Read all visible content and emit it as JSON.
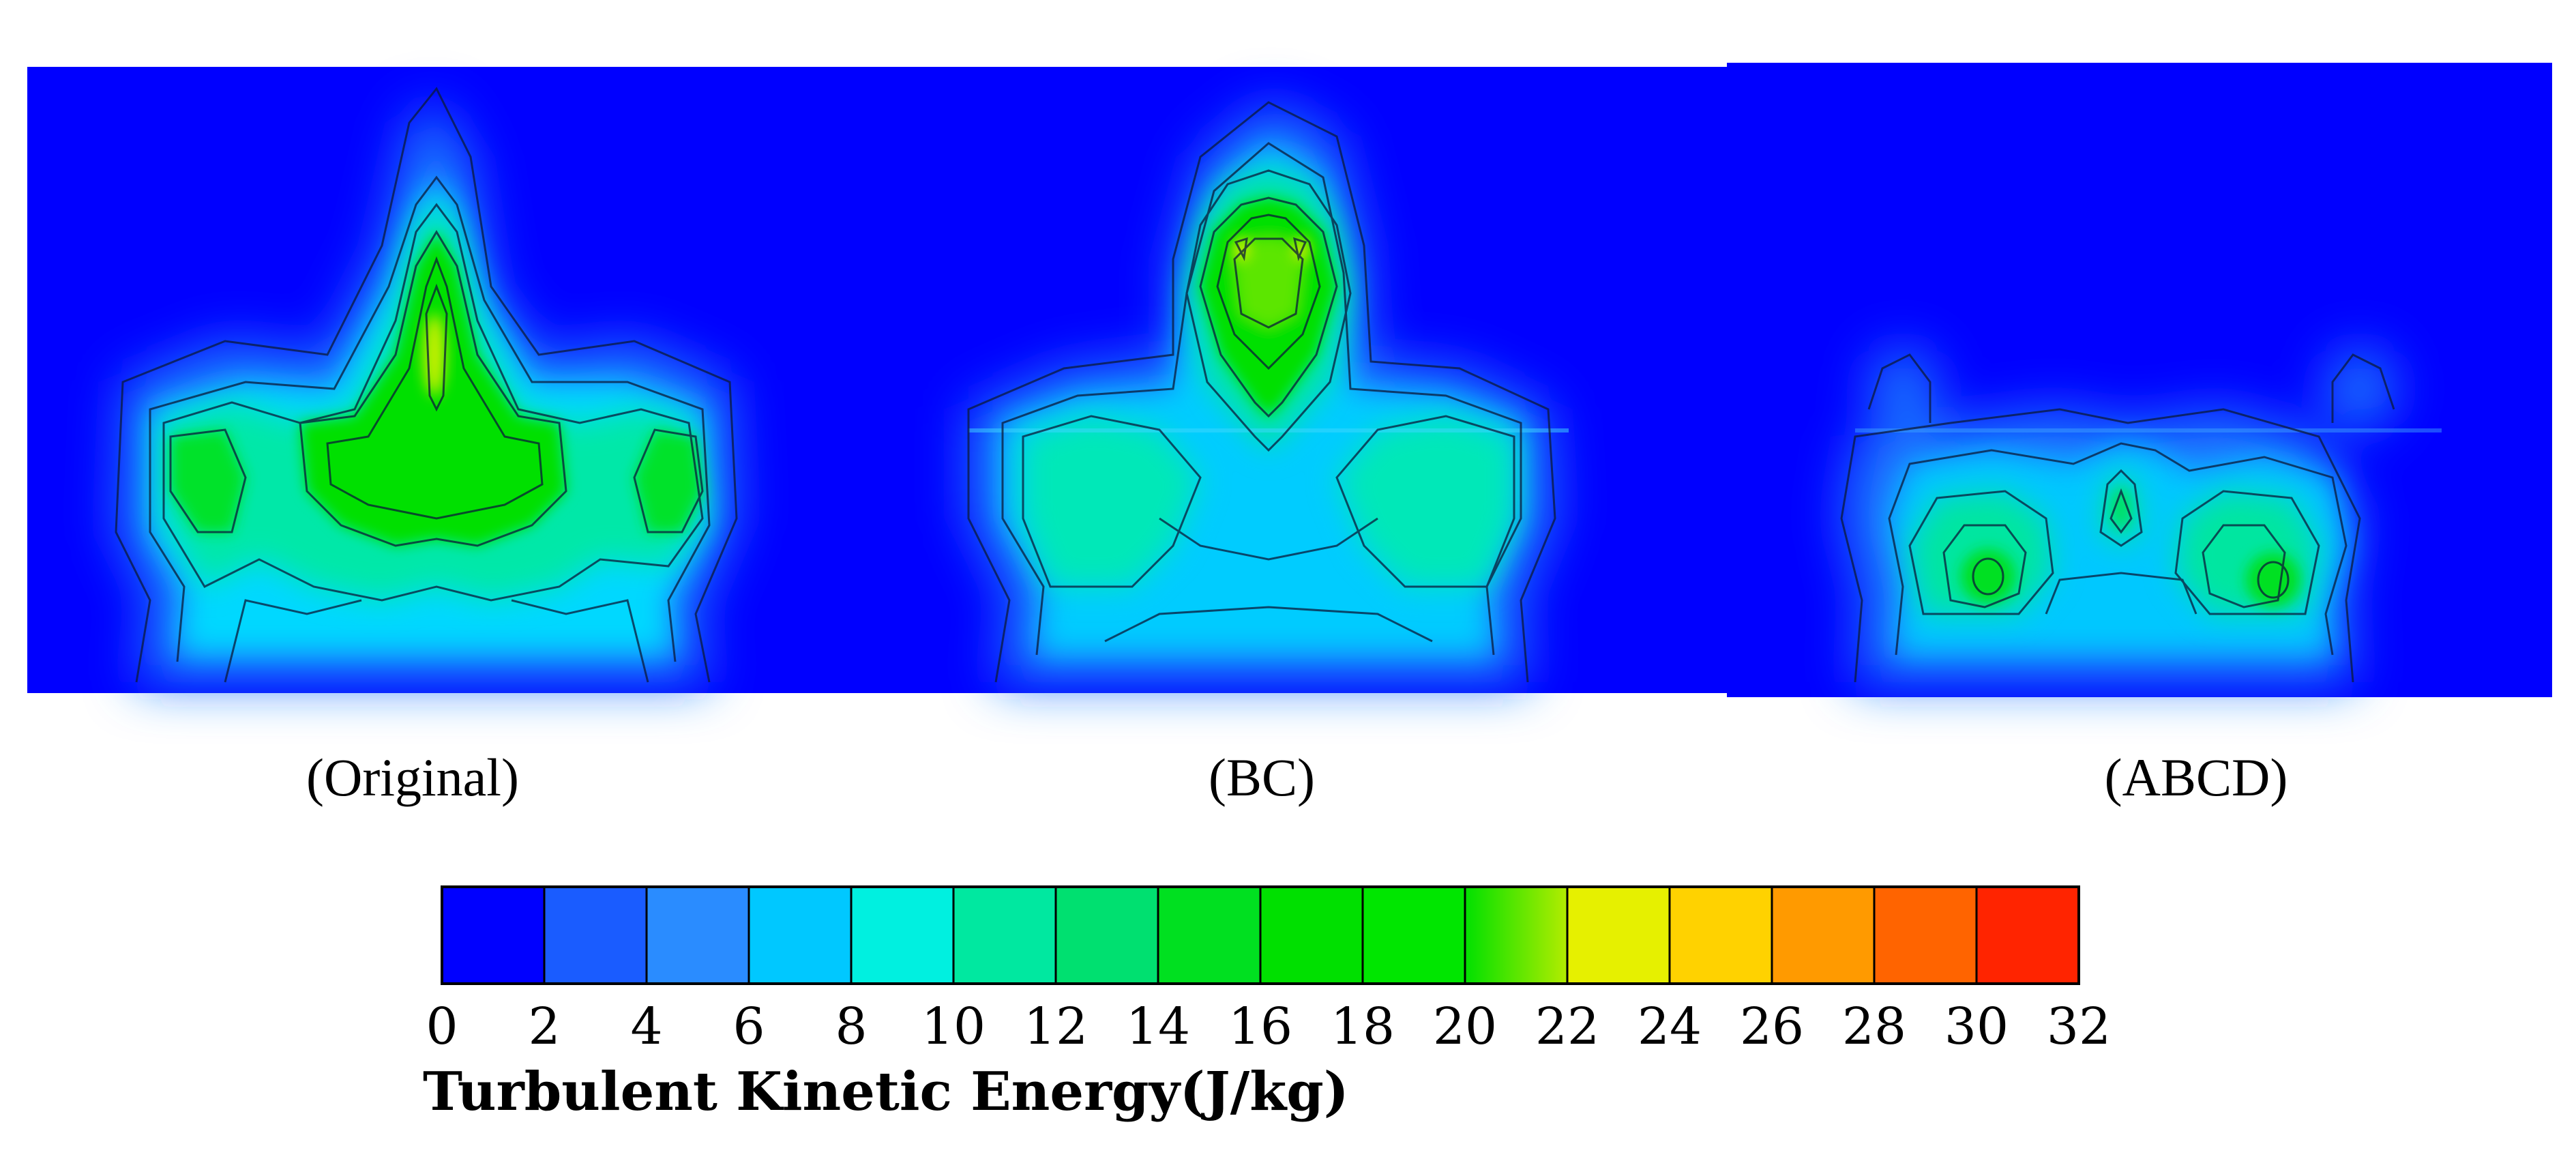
{
  "panels": [
    {
      "id": "original",
      "caption": "(Original)"
    },
    {
      "id": "bc",
      "caption": "(BC)"
    },
    {
      "id": "abcd",
      "caption": "(ABCD)"
    }
  ],
  "colorbar": {
    "title": "Turbulent Kinetic Energy(J/kg)",
    "tick_labels": [
      "0",
      "2",
      "4",
      "6",
      "8",
      "10",
      "12",
      "14",
      "16",
      "18",
      "20",
      "22",
      "24",
      "26",
      "28",
      "30",
      "32"
    ],
    "bands": [
      "#0000ff",
      "#1a5cff",
      "#2a8cff",
      "#00c8ff",
      "#00f0e0",
      "#00e8a0",
      "#00e070",
      "#00e020",
      "#00e000",
      "#00e600",
      "#7ee600",
      "#e6f000",
      "#ffd200",
      "#ff9a00",
      "#ff6400",
      "#ff2400"
    ]
  },
  "colors": {
    "background_field": "#0000ff"
  }
}
